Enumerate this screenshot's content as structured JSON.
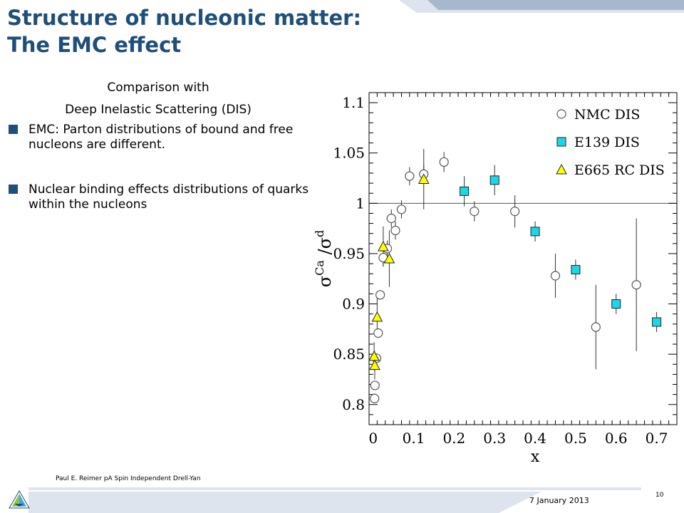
{
  "slide": {
    "title_lines": [
      "Structure of nucleonic matter:",
      "The EMC effect"
    ],
    "subtitle_lines": [
      "Comparison with",
      "Deep Inelastic Scattering (DIS)"
    ],
    "bullets": [
      {
        "text": "EMC:  Parton distributions of bound and free nucleons are different."
      },
      {
        "text": "Nuclear binding effects distributions of quarks within the nucleons"
      }
    ],
    "colors": {
      "title": "#1f4e79",
      "bullet": "#1f4e79",
      "band": "#a8b8cc",
      "band_light": "#dde4ed"
    }
  },
  "footer": {
    "presenter": "Paul E. Reimer pA Spin Independent Drell-Yan",
    "date": "7 January 2013",
    "page_number": "10",
    "logo_icon": "argonne-logo-icon"
  },
  "chart_data": {
    "type": "scatter",
    "xlabel": "x",
    "ylabel": "σ^Ca/σ^d",
    "xlim": [
      -0.01,
      0.75
    ],
    "ylim": [
      0.78,
      1.11
    ],
    "xticks": [
      0,
      0.1,
      0.2,
      0.3,
      0.4,
      0.5,
      0.6,
      0.7
    ],
    "xtick_labels": [
      "0",
      "0.1",
      "0.2",
      "0.3",
      "0.4",
      "0.5",
      "0.6",
      "0.7"
    ],
    "yticks": [
      0.8,
      0.85,
      0.9,
      0.95,
      1,
      1.05,
      1.1
    ],
    "ytick_labels": [
      "0.8",
      "0.85",
      "0.9",
      "0.95",
      "1",
      "1.05",
      "1.1"
    ],
    "reference_line": 1.0,
    "grid": false,
    "legend_position": "top-right",
    "series": [
      {
        "name": "NMC DIS",
        "marker": "open-circle",
        "color": "#ffffff",
        "points": [
          {
            "x": 0.0035,
            "y": 0.806,
            "err": 0.004
          },
          {
            "x": 0.0045,
            "y": 0.819,
            "err": 0.004
          },
          {
            "x": 0.0085,
            "y": 0.846,
            "err": 0.004
          },
          {
            "x": 0.0125,
            "y": 0.871,
            "err": 0.004
          },
          {
            "x": 0.0175,
            "y": 0.909,
            "err": 0.004
          },
          {
            "x": 0.025,
            "y": 0.946,
            "err": 0.008
          },
          {
            "x": 0.035,
            "y": 0.955,
            "err": 0.008
          },
          {
            "x": 0.045,
            "y": 0.985,
            "err": 0.009
          },
          {
            "x": 0.055,
            "y": 0.973,
            "err": 0.009
          },
          {
            "x": 0.07,
            "y": 0.994,
            "err": 0.009
          },
          {
            "x": 0.09,
            "y": 1.027,
            "err": 0.009
          },
          {
            "x": 0.125,
            "y": 1.029,
            "err": 0.009
          },
          {
            "x": 0.175,
            "y": 1.041,
            "err": 0.01
          },
          {
            "x": 0.25,
            "y": 0.992,
            "err": 0.01
          },
          {
            "x": 0.35,
            "y": 0.992,
            "err": 0.016
          },
          {
            "x": 0.45,
            "y": 0.928,
            "err": 0.022
          },
          {
            "x": 0.55,
            "y": 0.877,
            "err": 0.042
          },
          {
            "x": 0.65,
            "y": 0.919,
            "err": 0.066
          }
        ]
      },
      {
        "name": "E139 DIS",
        "marker": "square",
        "color": "#1ad8e8",
        "points": [
          {
            "x": 0.225,
            "y": 1.012,
            "err": 0.015
          },
          {
            "x": 0.3,
            "y": 1.023,
            "err": 0.015
          },
          {
            "x": 0.4,
            "y": 0.972,
            "err": 0.01
          },
          {
            "x": 0.5,
            "y": 0.934,
            "err": 0.01
          },
          {
            "x": 0.6,
            "y": 0.9,
            "err": 0.01
          },
          {
            "x": 0.7,
            "y": 0.882,
            "err": 0.01
          }
        ]
      },
      {
        "name": "E665 RC DIS",
        "marker": "triangle",
        "color": "#ffff00",
        "points": [
          {
            "x": 0.0025,
            "y": 0.848,
            "err": 0.014
          },
          {
            "x": 0.004,
            "y": 0.839,
            "err": 0.014
          },
          {
            "x": 0.01,
            "y": 0.887,
            "err": 0.02
          },
          {
            "x": 0.025,
            "y": 0.957,
            "err": 0.02
          },
          {
            "x": 0.04,
            "y": 0.945,
            "err": 0.028
          },
          {
            "x": 0.125,
            "y": 1.024,
            "err": 0.03
          }
        ]
      }
    ]
  }
}
